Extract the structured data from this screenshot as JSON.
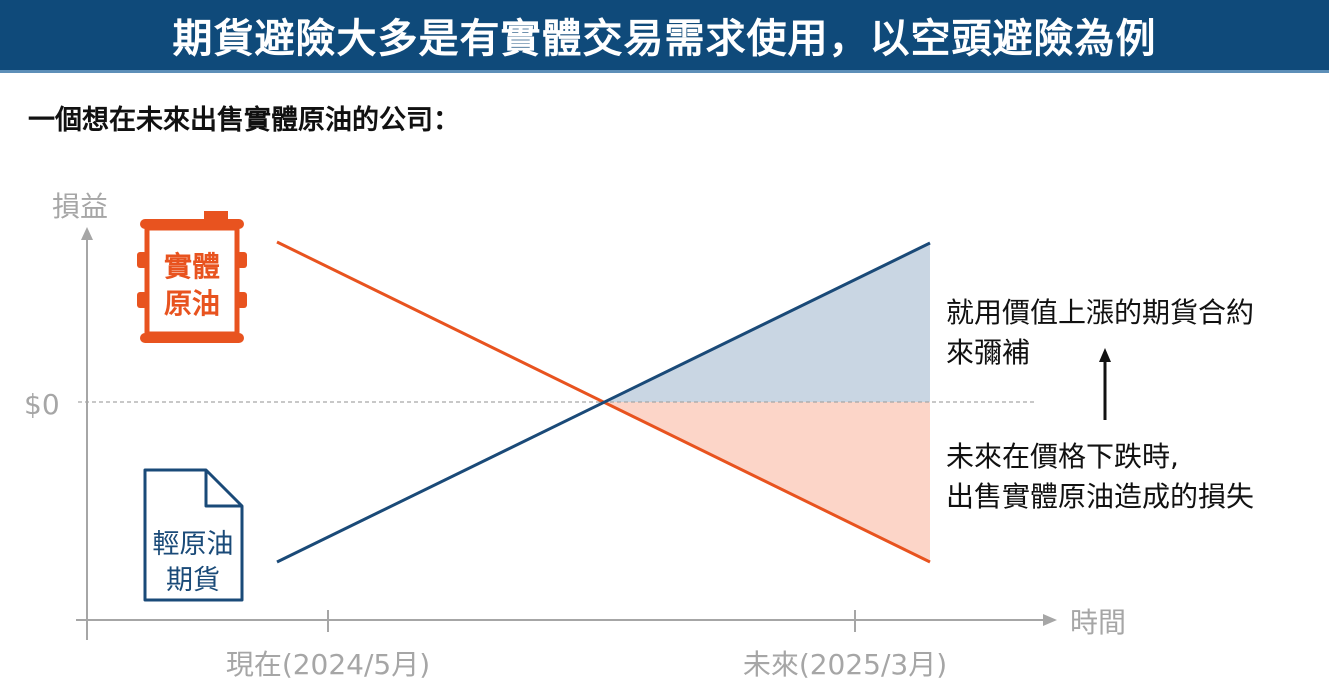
{
  "title": "期貨避險大多是有實體交易需求使用，以空頭避險為例",
  "subtitle": "一個想在未來出售實體原油的公司：",
  "axes": {
    "y_label": "損益",
    "x_label": "時間",
    "zero_label": "$0",
    "tick_now": "現在(2024/5月)",
    "tick_future": "未來(2025/3月)"
  },
  "icons": {
    "physical_oil": {
      "name": "oil-barrel-icon",
      "line1": "實體",
      "line2": "原油"
    },
    "futures": {
      "name": "document-icon",
      "line1": "輕原油",
      "line2": "期貨"
    }
  },
  "annotations": {
    "gain_line1": "就用價值上漲的期貨合約",
    "gain_line2": "來彌補",
    "loss_line1": "未來在價格下跌時,",
    "loss_line2": "出售實體原油造成的損失"
  },
  "colors": {
    "title_bg": "#0f4a7a",
    "physical_line": "#e8531f",
    "futures_line": "#1a4a78",
    "gain_fill": "#c9d6e3",
    "loss_fill": "#fcd5c8",
    "axis": "#a6a6a6"
  }
}
